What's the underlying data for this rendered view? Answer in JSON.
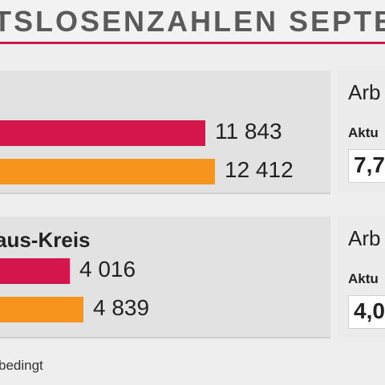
{
  "title": "TSLOSENZAHLEN SEPTE",
  "colors": {
    "bar_a": "#d4164c",
    "bar_b": "#f7941d",
    "accent": "#c8194a"
  },
  "chart_data": [
    {
      "type": "bar",
      "orientation": "horizontal",
      "region": "",
      "values": [
        11843,
        12412
      ],
      "labels": [
        "11 843",
        "12 412"
      ],
      "colors": [
        "#d4164c",
        "#f7941d"
      ]
    },
    {
      "type": "bar",
      "orientation": "horizontal",
      "region": "aus-Kreis",
      "values": [
        4016,
        4839
      ],
      "labels": [
        "4 016",
        "4 839"
      ],
      "colors": [
        "#d4164c",
        "#f7941d"
      ]
    }
  ],
  "side": [
    {
      "heading": "Arb",
      "sub": "Aktu",
      "value": "7,7"
    },
    {
      "heading": "Arb",
      "sub": "Aktu",
      "value": "4,0"
    }
  ],
  "footnote": "bedingt"
}
